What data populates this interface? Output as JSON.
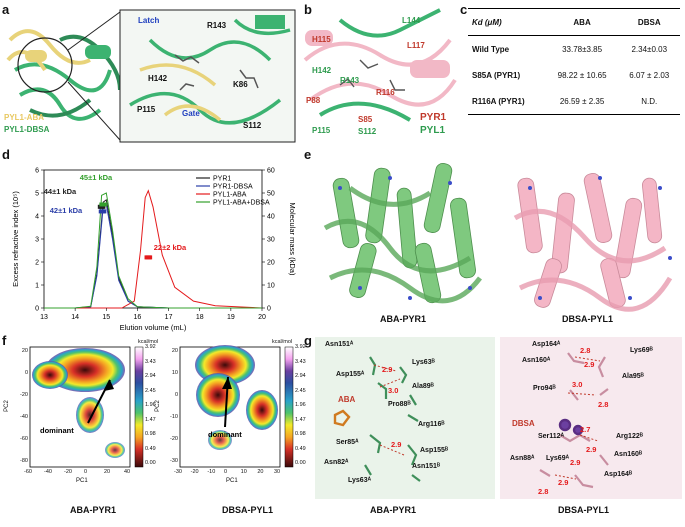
{
  "panel_labels": {
    "a": "a",
    "b": "b",
    "c": "c",
    "d": "d",
    "e": "e",
    "f": "f",
    "g": "g"
  },
  "panel_a": {
    "legend": [
      "PYL1-ABA",
      "PYL1-DBSA"
    ],
    "labels": [
      "Latch",
      "R143",
      "H142",
      "K86",
      "P115",
      "Gate",
      "S112"
    ]
  },
  "panel_b": {
    "labels": [
      "L144",
      "H115",
      "L117",
      "H142",
      "R143",
      "P88",
      "R116",
      "P115",
      "S85",
      "S112"
    ],
    "legend": [
      "PYR1",
      "PYL1"
    ]
  },
  "panel_c": {
    "header": [
      "Kd (μM)",
      "ABA",
      "DBSA"
    ],
    "rows": [
      [
        "Wild Type",
        "33.78±3.85",
        "2.34±0.03"
      ],
      [
        "S85A (PYR1)",
        "98.22 ± 10.65",
        "6.07 ± 2.03"
      ],
      [
        "R116A (PYR1)",
        "26.59 ± 2.35",
        "N.D."
      ]
    ]
  },
  "chart_data": {
    "type": "line",
    "xlabel": "Elution volume (mL)",
    "ylabel": "Excess refractive index (10⁵)",
    "y2label": "Molecular mass (kDa)",
    "xlim": [
      13,
      20
    ],
    "ylim": [
      0,
      6
    ],
    "y2lim": [
      0,
      60
    ],
    "xticks": [
      "13",
      "14",
      "15",
      "16",
      "17",
      "18",
      "19",
      "20"
    ],
    "yticks": [
      "0",
      "1",
      "2",
      "3",
      "4",
      "5",
      "6"
    ],
    "y2ticks": [
      "0",
      "10",
      "20",
      "30",
      "40",
      "50",
      "60"
    ],
    "legend": [
      "PYR1",
      "PYR1-DBSA",
      "PYL1-ABA",
      "PYL1-ABA+DBSA"
    ],
    "annotations": [
      "45±1 kDa",
      "44±1 kDa",
      "42±1 kDa",
      "22±2 kDa"
    ],
    "series": [
      {
        "name": "PYR1",
        "color": "#222222",
        "x": [
          13,
          14,
          14.5,
          14.7,
          14.9,
          15.0,
          15.2,
          15.4,
          15.7,
          16,
          17,
          20
        ],
        "y": [
          0,
          0,
          0.05,
          1.5,
          4.6,
          4.7,
          3.2,
          1.3,
          0.3,
          0.05,
          0,
          0
        ]
      },
      {
        "name": "PYR1-DBSA",
        "color": "#2b3ea8",
        "x": [
          13,
          14,
          14.5,
          14.7,
          14.9,
          15.0,
          15.2,
          15.4,
          15.7,
          16,
          17,
          20
        ],
        "y": [
          0,
          0,
          0.05,
          1.4,
          4.4,
          4.5,
          3.0,
          1.2,
          0.3,
          0.05,
          0,
          0
        ]
      },
      {
        "name": "PYL1-ABA",
        "color": "#e41a1c",
        "x": [
          13,
          15.5,
          15.9,
          16.1,
          16.25,
          16.35,
          16.5,
          16.8,
          17.2,
          17.8,
          18.5,
          20
        ],
        "y": [
          0,
          0,
          0.3,
          2.5,
          4.8,
          5.1,
          4.4,
          2.3,
          0.9,
          0.3,
          0.1,
          0
        ]
      },
      {
        "name": "PYL1-ABA+DBSA",
        "color": "#33a02c",
        "x": [
          13,
          14,
          14.5,
          14.7,
          14.85,
          15.0,
          15.2,
          15.4,
          15.7,
          16,
          17,
          20
        ],
        "y": [
          0,
          0,
          0.08,
          1.8,
          4.9,
          5.0,
          3.4,
          1.4,
          0.4,
          0.05,
          0,
          0
        ]
      }
    ]
  },
  "panel_e": {
    "captions": [
      "ABA-PYR1",
      "DBSA-PYL1"
    ]
  },
  "panel_f": {
    "captions": [
      "ABA-PYR1",
      "DBSA-PYL1"
    ],
    "xlabel": "PC1",
    "ylabel": "PC2",
    "unit": "kcal/mol",
    "colorbar": [
      "3.92",
      "3.43",
      "2.94",
      "2.45",
      "1.96",
      "1.47",
      "0.98",
      "0.49",
      "0.00"
    ],
    "left_xticks": [
      "-60",
      "-40",
      "-20",
      "0",
      "20",
      "40"
    ],
    "left_yticks": [
      "20",
      "0",
      "-20",
      "-40",
      "-60",
      "-80"
    ],
    "right_xticks": [
      "-30",
      "-20",
      "-10",
      "0",
      "10",
      "20",
      "30"
    ],
    "right_yticks": [
      "20",
      "10",
      "0",
      "-10",
      "-20",
      "-30"
    ],
    "annotation": "dominant"
  },
  "panel_g": {
    "captions": [
      "ABA-PYR1",
      "DBSA-PYL1"
    ],
    "left_labels": [
      "Asn151ᴬ",
      "Lys63ᴮ",
      "Asp155ᴬ",
      "Ala89ᴮ",
      "ABA",
      "Pro88ᴮ",
      "Arg116ᴮ",
      "Ser85ᴬ",
      "Asp155ᴮ",
      "Asn82ᴬ",
      "Asn151ᴮ",
      "Lys63ᴬ"
    ],
    "left_dists": [
      "2.9",
      "3.0",
      "2.9"
    ],
    "right_labels": [
      "Asp164ᴬ",
      "Lys69ᴮ",
      "Asn160ᴬ",
      "Ala95ᴮ",
      "Pro94ᴮ",
      "DBSA",
      "Ser112ᴬ",
      "Arg122ᴮ",
      "Asn160ᴮ",
      "Asn88ᴬ",
      "Lys69ᴬ",
      "Asp164ᴮ"
    ],
    "right_dists": [
      "2.8",
      "2.9",
      "3.0",
      "2.8",
      "2.7",
      "2.9",
      "2.9",
      "2.9",
      "2.8"
    ]
  }
}
